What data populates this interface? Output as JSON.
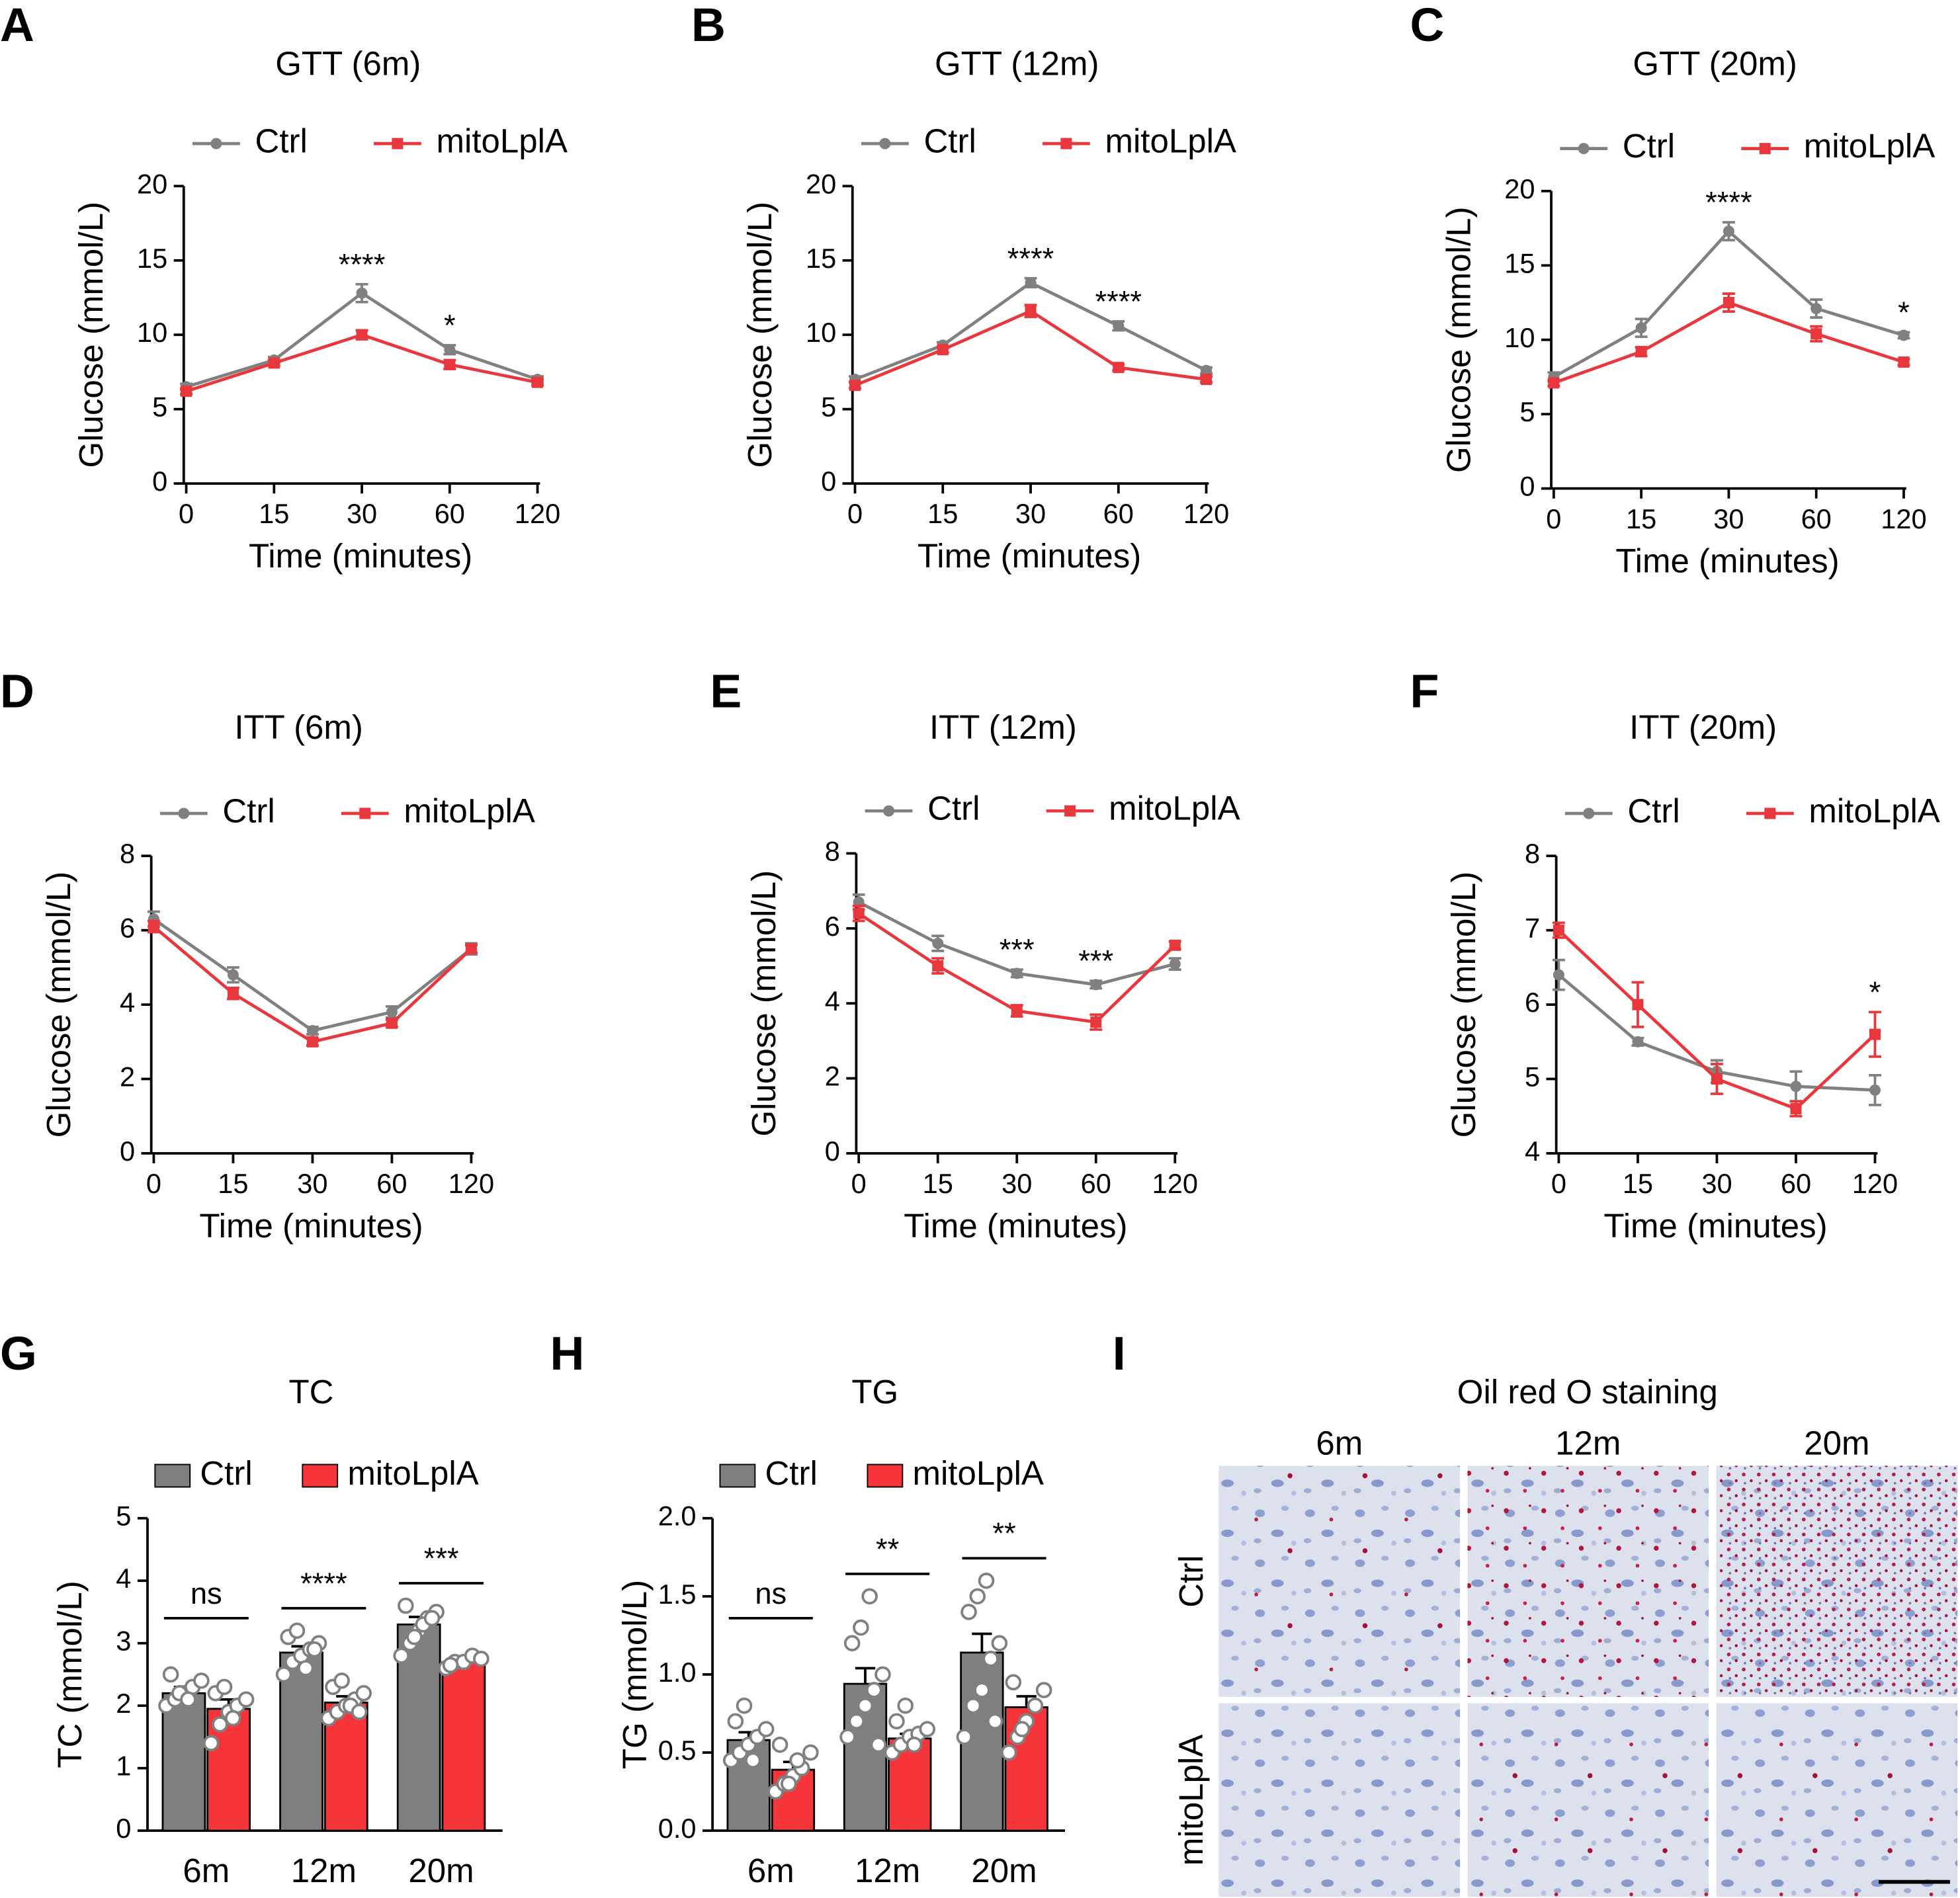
{
  "chart_data": [
    {
      "type": "line",
      "label": "A",
      "title": "GTT (6m)",
      "xlabel": "Time (minutes)",
      "ylabel": "Glucose (mmol/L)",
      "categories": [
        "0",
        "15",
        "30",
        "60",
        "120"
      ],
      "ylim": [
        0,
        20
      ],
      "yticks": [
        0,
        5,
        10,
        15,
        20
      ],
      "series": [
        {
          "name": "Ctrl",
          "color": "#808080",
          "marker": "circle",
          "values": [
            6.5,
            8.3,
            12.8,
            9.0,
            7.0
          ],
          "errors": [
            0.2,
            0.2,
            0.6,
            0.3,
            0.2
          ]
        },
        {
          "name": "mitoLplA",
          "color": "#e8383d",
          "marker": "square",
          "values": [
            6.2,
            8.1,
            10.0,
            8.0,
            6.8
          ],
          "errors": [
            0.2,
            0.2,
            0.3,
            0.3,
            0.2
          ]
        }
      ],
      "annotations": [
        {
          "category": "30",
          "text": "****"
        },
        {
          "category": "60",
          "text": "*"
        }
      ]
    },
    {
      "type": "line",
      "label": "B",
      "title": "GTT (12m)",
      "xlabel": "Time (minutes)",
      "ylabel": "Glucose (mmol/L)",
      "categories": [
        "0",
        "15",
        "30",
        "60",
        "120"
      ],
      "ylim": [
        0,
        20
      ],
      "yticks": [
        0,
        5,
        10,
        15,
        20
      ],
      "series": [
        {
          "name": "Ctrl",
          "color": "#808080",
          "marker": "circle",
          "values": [
            7.0,
            9.3,
            13.5,
            10.6,
            7.6
          ],
          "errors": [
            0.2,
            0.2,
            0.3,
            0.3,
            0.2
          ]
        },
        {
          "name": "mitoLplA",
          "color": "#e8383d",
          "marker": "square",
          "values": [
            6.6,
            9.0,
            11.6,
            7.8,
            7.0
          ],
          "errors": [
            0.2,
            0.2,
            0.4,
            0.2,
            0.2
          ]
        }
      ],
      "annotations": [
        {
          "category": "30",
          "text": "****"
        },
        {
          "category": "60",
          "text": "****"
        }
      ]
    },
    {
      "type": "line",
      "label": "C",
      "title": "GTT (20m)",
      "xlabel": "Time (minutes)",
      "ylabel": "Glucose (mmol/L)",
      "categories": [
        "0",
        "15",
        "30",
        "60",
        "120"
      ],
      "ylim": [
        0,
        20
      ],
      "yticks": [
        0,
        5,
        10,
        15,
        20
      ],
      "series": [
        {
          "name": "Ctrl",
          "color": "#808080",
          "marker": "circle",
          "values": [
            7.5,
            10.8,
            17.3,
            12.1,
            10.3
          ],
          "errors": [
            0.3,
            0.6,
            0.6,
            0.6,
            0.2
          ]
        },
        {
          "name": "mitoLplA",
          "color": "#e8383d",
          "marker": "square",
          "values": [
            7.1,
            9.2,
            12.5,
            10.4,
            8.5
          ],
          "errors": [
            0.2,
            0.3,
            0.6,
            0.5,
            0.2
          ]
        }
      ],
      "annotations": [
        {
          "category": "30",
          "text": "****"
        },
        {
          "category": "120",
          "text": "*"
        }
      ]
    },
    {
      "type": "line",
      "label": "D",
      "title": "ITT (6m)",
      "xlabel": "Time (minutes)",
      "ylabel": "Glucose (mmol/L)",
      "categories": [
        "0",
        "15",
        "30",
        "60",
        "120"
      ],
      "ylim": [
        0,
        8
      ],
      "yticks": [
        0,
        2,
        4,
        6,
        8
      ],
      "series": [
        {
          "name": "Ctrl",
          "color": "#808080",
          "marker": "circle",
          "values": [
            6.3,
            4.8,
            3.3,
            3.8,
            5.5
          ],
          "errors": [
            0.2,
            0.2,
            0.1,
            0.15,
            0.15
          ]
        },
        {
          "name": "mitoLplA",
          "color": "#e8383d",
          "marker": "square",
          "values": [
            6.1,
            4.3,
            3.0,
            3.5,
            5.5
          ],
          "errors": [
            0.15,
            0.15,
            0.1,
            0.1,
            0.1
          ]
        }
      ],
      "annotations": []
    },
    {
      "type": "line",
      "label": "E",
      "title": "ITT (12m)",
      "xlabel": "Time (minutes)",
      "ylabel": "Glucose (mmol/L)",
      "categories": [
        "0",
        "15",
        "30",
        "60",
        "120"
      ],
      "ylim": [
        0,
        8
      ],
      "yticks": [
        0,
        2,
        4,
        6,
        8
      ],
      "series": [
        {
          "name": "Ctrl",
          "color": "#808080",
          "marker": "circle",
          "values": [
            6.7,
            5.6,
            4.8,
            4.5,
            5.05
          ],
          "errors": [
            0.2,
            0.2,
            0.1,
            0.1,
            0.15
          ]
        },
        {
          "name": "mitoLplA",
          "color": "#e8383d",
          "marker": "square",
          "values": [
            6.4,
            5.0,
            3.8,
            3.5,
            5.55
          ],
          "errors": [
            0.2,
            0.2,
            0.15,
            0.2,
            0.1
          ]
        }
      ],
      "annotations": [
        {
          "category": "30",
          "text": "***"
        },
        {
          "category": "60",
          "text": "***"
        }
      ]
    },
    {
      "type": "line",
      "label": "F",
      "title": "ITT (20m)",
      "xlabel": "Time (minutes)",
      "ylabel": "Glucose (mmol/L)",
      "categories": [
        "0",
        "15",
        "30",
        "60",
        "120"
      ],
      "ylim": [
        4,
        8
      ],
      "yticks": [
        4,
        5,
        6,
        7,
        8
      ],
      "series": [
        {
          "name": "Ctrl",
          "color": "#808080",
          "marker": "circle",
          "values": [
            6.4,
            5.5,
            5.1,
            4.9,
            4.85
          ],
          "errors": [
            0.2,
            0.05,
            0.15,
            0.2,
            0.2
          ]
        },
        {
          "name": "mitoLplA",
          "color": "#e8383d",
          "marker": "square",
          "values": [
            7.0,
            6.0,
            5.0,
            4.6,
            5.6
          ],
          "errors": [
            0.1,
            0.3,
            0.2,
            0.1,
            0.3
          ]
        }
      ],
      "annotations": [
        {
          "category": "120",
          "text": "*"
        }
      ]
    },
    {
      "type": "bar",
      "label": "G",
      "title": "TC",
      "ylabel": "TC (mmol/L)",
      "categories": [
        "6m",
        "12m",
        "20m"
      ],
      "ylim": [
        0,
        5
      ],
      "yticks": [
        0,
        1,
        2,
        3,
        4,
        5
      ],
      "series": [
        {
          "name": "Ctrl",
          "color": "#7f7f7f",
          "values": [
            2.2,
            2.85,
            3.3
          ],
          "errors": [
            0.1,
            0.1,
            0.12
          ],
          "points": [
            [
              2.0,
              2.1,
              2.2,
              2.3,
              2.4,
              2.5,
              2.2,
              2.1
            ],
            [
              2.5,
              2.7,
              2.8,
              2.9,
              3.0,
              3.1,
              3.2,
              2.6,
              2.9
            ],
            [
              2.8,
              3.0,
              3.2,
              3.4,
              3.5,
              3.6,
              3.1,
              3.3,
              3.4
            ]
          ]
        },
        {
          "name": "mitoLplA",
          "color": "#f5353a",
          "values": [
            1.95,
            2.05,
            2.7
          ],
          "errors": [
            0.15,
            0.1,
            0.05
          ],
          "points": [
            [
              1.4,
              1.7,
              1.9,
              2.0,
              2.1,
              2.2,
              2.3,
              1.8
            ],
            [
              1.8,
              1.9,
              2.0,
              2.1,
              2.2,
              2.3,
              2.4,
              2.0,
              1.9
            ],
            [
              2.6,
              2.7,
              2.7,
              2.8,
              2.75,
              2.65
            ]
          ]
        }
      ],
      "annotations": [
        {
          "category": "6m",
          "text": "ns"
        },
        {
          "category": "12m",
          "text": "****"
        },
        {
          "category": "20m",
          "text": "***"
        }
      ]
    },
    {
      "type": "bar",
      "label": "H",
      "title": "TG",
      "ylabel": "TG (mmol/L)",
      "categories": [
        "6m",
        "12m",
        "20m"
      ],
      "ylim": [
        0,
        2
      ],
      "yticks": [
        {
          "value": 0,
          "label": "0.0"
        },
        0.5,
        {
          "value": 1,
          "label": "1.0"
        },
        1.5,
        {
          "value": 2,
          "label": "2.0"
        }
      ],
      "series": [
        {
          "name": "Ctrl",
          "color": "#7f7f7f",
          "values": [
            0.58,
            0.94,
            1.14
          ],
          "errors": [
            0.05,
            0.1,
            0.12
          ],
          "points": [
            [
              0.45,
              0.5,
              0.55,
              0.6,
              0.65,
              0.7,
              0.8,
              0.45
            ],
            [
              0.6,
              0.7,
              0.8,
              0.9,
              1.0,
              1.2,
              1.3,
              1.5,
              0.55
            ],
            [
              0.6,
              0.8,
              0.9,
              1.1,
              1.2,
              1.4,
              1.5,
              1.6,
              0.7
            ]
          ]
        },
        {
          "name": "mitoLplA",
          "color": "#f5353a",
          "values": [
            0.39,
            0.59,
            0.79
          ],
          "errors": [
            0.05,
            0.03,
            0.07
          ],
          "points": [
            [
              0.25,
              0.3,
              0.35,
              0.4,
              0.5,
              0.55,
              0.3,
              0.45
            ],
            [
              0.5,
              0.55,
              0.6,
              0.62,
              0.65,
              0.7,
              0.8,
              0.55
            ],
            [
              0.5,
              0.6,
              0.7,
              0.8,
              0.9,
              0.95,
              0.65
            ]
          ]
        }
      ],
      "annotations": [
        {
          "category": "6m",
          "text": "ns"
        },
        {
          "category": "12m",
          "text": "**"
        },
        {
          "category": "20m",
          "text": "**"
        }
      ]
    }
  ],
  "staining": {
    "label": "I",
    "title": "Oil red O staining",
    "columns": [
      "6m",
      "12m",
      "20m"
    ],
    "rows": [
      "Ctrl",
      "mitoLplA"
    ]
  }
}
